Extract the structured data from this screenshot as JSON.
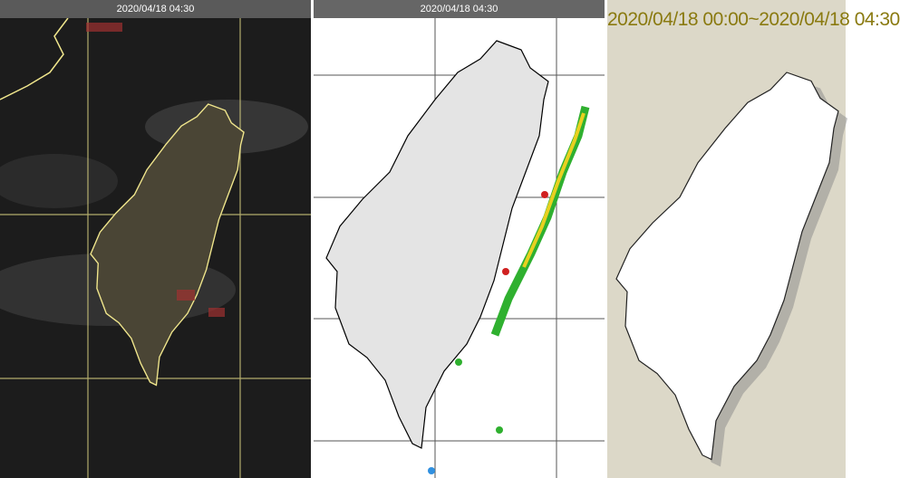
{
  "panels": [
    {
      "timestamp": "2020/04/18 04:30"
    },
    {
      "timestamp": "2020/04/18 04:30"
    },
    {
      "timestamp": "2020/04/18 00:00~2020/04/18 04:30"
    }
  ]
}
